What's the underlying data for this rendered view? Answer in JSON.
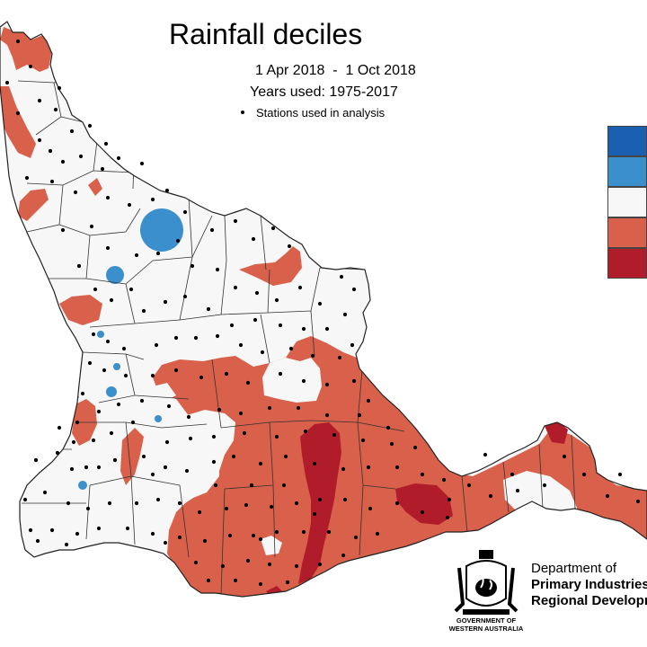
{
  "title": "Rainfall deciles",
  "date_range": "1 Apr 2018  -  1 Oct 2018",
  "years_used": "Years used: 1975-2017",
  "stations_note": "Stations used in analysis",
  "legend": {
    "swatch_colors": [
      "#1a5fb0",
      "#3b8fcc",
      "#f7f7f7",
      "#d9604a",
      "#b01c2a"
    ]
  },
  "colors": {
    "dark_red": "#b01c2a",
    "red": "#d9604a",
    "light_blue": "#3b8fcc",
    "white": "#f7f7f7",
    "boundary": "#333333"
  },
  "logo": {
    "crest_text": "GOVERNMENT OF WESTERN AUSTRALIA",
    "gov_line1": "GOVERNMENT OF",
    "gov_line2": "WESTERN AUSTRALIA"
  },
  "department": {
    "line1": "Department of",
    "line2": "Primary Industries",
    "line3": "Regional Development"
  }
}
